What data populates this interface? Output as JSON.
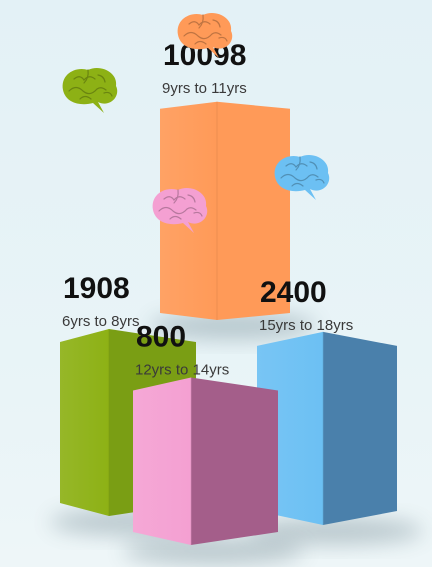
{
  "chart_data": {
    "type": "bar",
    "categories": [
      "6yrs to 8yrs",
      "9yrs to 11yrs",
      "12yrs to 14yrs",
      "15yrs to 18yrs"
    ],
    "values": [
      1908,
      10098,
      800,
      2400
    ],
    "value_labels": [
      "1908",
      "10098",
      "800",
      "2400"
    ],
    "colors": [
      "#8db115",
      "#ff9a58",
      "#f4a0d2",
      "#6cc0f3"
    ],
    "side_colors": [
      "#7a9e14",
      "#ff9a58",
      "#a45e8a",
      "#4a80ab"
    ],
    "title": "",
    "xlabel": "",
    "ylabel": "",
    "grid": false,
    "legend": "none",
    "bar_style": "3d",
    "icons": [
      "brain-icon",
      "brain-icon",
      "brain-icon",
      "brain-icon"
    ]
  }
}
